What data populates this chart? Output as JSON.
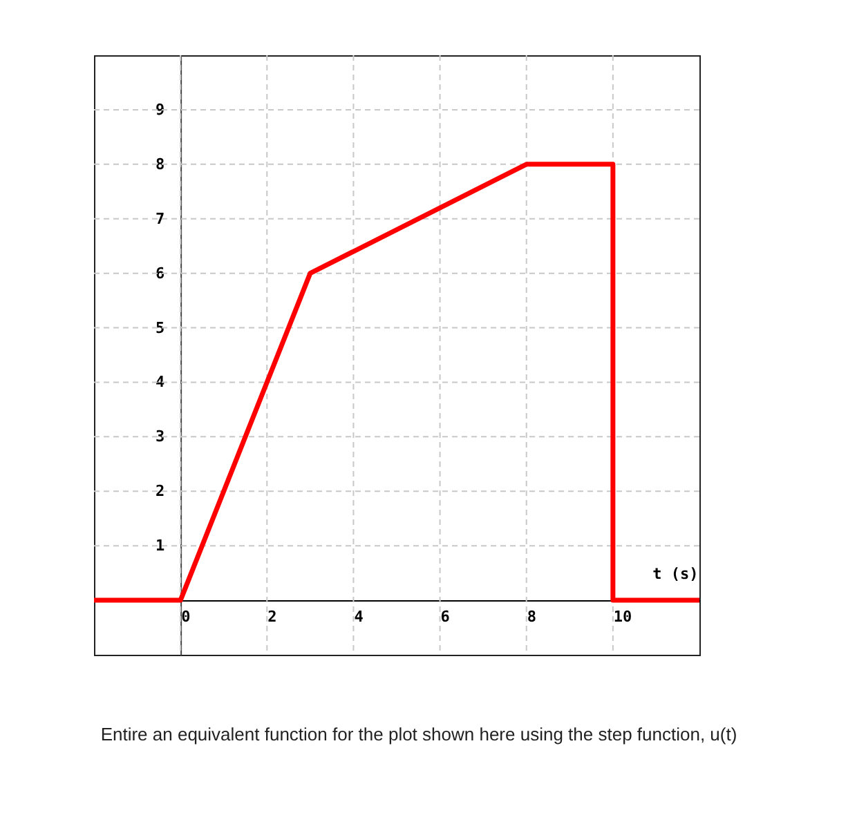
{
  "chart_data": {
    "type": "line",
    "xlabel": "t (s)",
    "x": [
      -2,
      0,
      3,
      8,
      10,
      10,
      12
    ],
    "series": [
      {
        "color": "#ff0000",
        "values": [
          0,
          0,
          6,
          8,
          8,
          0,
          0
        ]
      }
    ],
    "xlim": [
      -2,
      12
    ],
    "ylim": [
      -1,
      10
    ],
    "xticks": [
      0,
      2,
      4,
      6,
      8,
      10
    ],
    "yticks": [
      1,
      2,
      3,
      4,
      5,
      6,
      7,
      8,
      9
    ],
    "grid": true,
    "marker": "none",
    "line_style": "solid",
    "annotations": [
      "Entire an equivalent function for the plot shown here using the step function, u(t)"
    ]
  }
}
